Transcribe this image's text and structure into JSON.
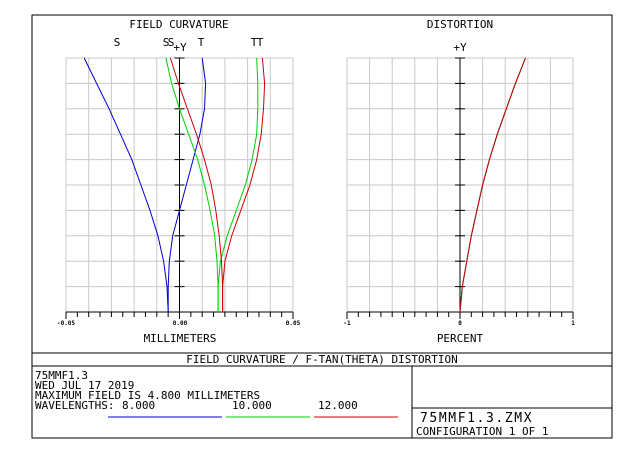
{
  "chart_data": [
    {
      "type": "line",
      "title": "FIELD CURVATURE",
      "xlabel": "MILLIMETERS",
      "ylabel": "+Y",
      "xlim": [
        -0.05,
        0.05
      ],
      "ylim": [
        0,
        1
      ],
      "x_ticks": [
        "-0.05",
        "0.00",
        "0.05"
      ],
      "grid": true,
      "curve_labels": [
        {
          "text": "S",
          "color": "#0000cc"
        },
        {
          "text": "S",
          "color": "#00cc00"
        },
        {
          "text": "S",
          "color": "#cc0000"
        },
        {
          "text": "T",
          "color": "#0000cc"
        },
        {
          "text": "T",
          "color": "#00cc00"
        },
        {
          "text": "T",
          "color": "#cc0000"
        }
      ],
      "series": [
        {
          "wavelength": "8.000",
          "kind": "S",
          "color": "#0000cc",
          "y": [
            0,
            0.1,
            0.2,
            0.3,
            0.4,
            0.5,
            0.6,
            0.7,
            0.8,
            0.9,
            1.0
          ],
          "x": [
            -0.005,
            -0.0055,
            -0.007,
            -0.0095,
            -0.013,
            -0.017,
            -0.021,
            -0.026,
            -0.031,
            -0.0365,
            -0.042
          ]
        },
        {
          "wavelength": "8.000",
          "kind": "T",
          "color": "#0000cc",
          "y": [
            0,
            0.1,
            0.2,
            0.3,
            0.4,
            0.5,
            0.6,
            0.7,
            0.8,
            0.9,
            1.0
          ],
          "x": [
            -0.005,
            -0.005,
            -0.0045,
            -0.003,
            0.0,
            0.003,
            0.006,
            0.009,
            0.011,
            0.0115,
            0.01
          ]
        },
        {
          "wavelength": "10.000",
          "kind": "S",
          "color": "#00cc00",
          "y": [
            0,
            0.1,
            0.2,
            0.3,
            0.4,
            0.5,
            0.6,
            0.7,
            0.8,
            0.9,
            1.0
          ],
          "x": [
            0.017,
            0.017,
            0.0165,
            0.0155,
            0.0135,
            0.011,
            0.008,
            0.004,
            0.0,
            -0.0035,
            -0.006
          ]
        },
        {
          "wavelength": "10.000",
          "kind": "T",
          "color": "#00cc00",
          "y": [
            0,
            0.1,
            0.2,
            0.3,
            0.4,
            0.5,
            0.6,
            0.7,
            0.8,
            0.9,
            1.0
          ],
          "x": [
            0.017,
            0.017,
            0.018,
            0.021,
            0.025,
            0.029,
            0.032,
            0.034,
            0.0345,
            0.0345,
            0.034
          ]
        },
        {
          "wavelength": "12.000",
          "kind": "S",
          "color": "#cc0000",
          "y": [
            0,
            0.1,
            0.2,
            0.3,
            0.4,
            0.5,
            0.6,
            0.7,
            0.8,
            0.9,
            1.0
          ],
          "x": [
            0.019,
            0.019,
            0.0185,
            0.0175,
            0.016,
            0.014,
            0.011,
            0.0075,
            0.0035,
            -0.0005,
            -0.004
          ]
        },
        {
          "wavelength": "12.000",
          "kind": "T",
          "color": "#cc0000",
          "y": [
            0,
            0.1,
            0.2,
            0.3,
            0.4,
            0.5,
            0.6,
            0.7,
            0.8,
            0.9,
            1.0
          ],
          "x": [
            0.019,
            0.019,
            0.02,
            0.023,
            0.027,
            0.031,
            0.034,
            0.036,
            0.037,
            0.0375,
            0.0365
          ]
        }
      ]
    },
    {
      "type": "line",
      "title": "DISTORTION",
      "xlabel": "PERCENT",
      "ylabel": "+Y",
      "xlim": [
        -1,
        1
      ],
      "ylim": [
        0,
        1
      ],
      "x_ticks": [
        "-1",
        "0",
        "1"
      ],
      "grid": true,
      "series": [
        {
          "wavelength": "8.000",
          "color": "#0000cc",
          "y": [
            0,
            0.1,
            0.2,
            0.3,
            0.4,
            0.5,
            0.6,
            0.7,
            0.8,
            0.9,
            1.0
          ],
          "x": [
            0,
            0.02,
            0.06,
            0.1,
            0.15,
            0.2,
            0.26,
            0.33,
            0.41,
            0.49,
            0.58
          ]
        },
        {
          "wavelength": "10.000",
          "color": "#00cc00",
          "y": [
            0,
            0.1,
            0.2,
            0.3,
            0.4,
            0.5,
            0.6,
            0.7,
            0.8,
            0.9,
            1.0
          ],
          "x": [
            0,
            0.02,
            0.06,
            0.1,
            0.15,
            0.2,
            0.26,
            0.33,
            0.41,
            0.49,
            0.58
          ]
        },
        {
          "wavelength": "12.000",
          "color": "#cc0000",
          "y": [
            0,
            0.1,
            0.2,
            0.3,
            0.4,
            0.5,
            0.6,
            0.7,
            0.8,
            0.9,
            1.0
          ],
          "x": [
            0,
            0.02,
            0.06,
            0.1,
            0.15,
            0.2,
            0.26,
            0.33,
            0.41,
            0.49,
            0.58
          ]
        }
      ]
    }
  ],
  "footer": {
    "title": "FIELD CURVATURE / F-TAN(THETA) DISTORTION",
    "lines": [
      "75MMF1.3",
      "WED JUL 17 2019",
      "MAXIMUM FIELD IS 4.800 MILLIMETERS"
    ],
    "wavelengths_label": "WAVELENGTHS:",
    "wavelengths": [
      {
        "value": "8.000",
        "color": "#0000cc"
      },
      {
        "value": "10.000",
        "color": "#00cc00"
      },
      {
        "value": "12.000",
        "color": "#cc0000"
      }
    ],
    "filename": "75MMF1.3.ZMX",
    "configuration": "CONFIGURATION 1 OF 1"
  }
}
